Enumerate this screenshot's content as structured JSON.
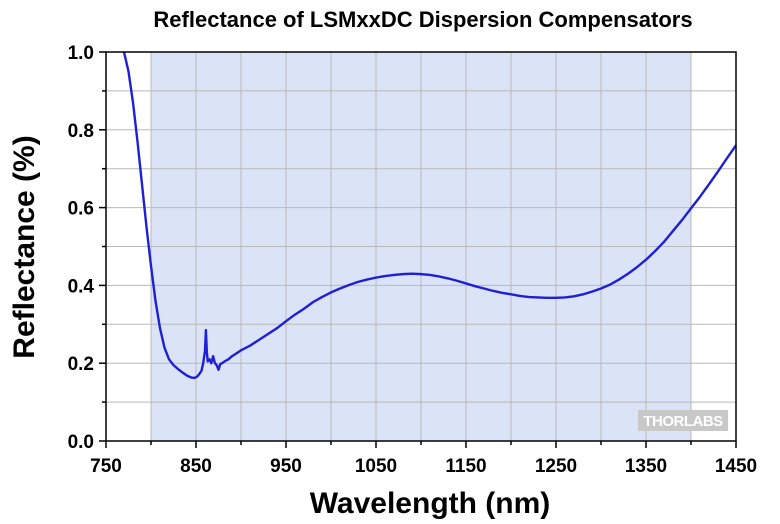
{
  "chart_data": {
    "type": "line",
    "title": "Reflectance of LSMxxDC Dispersion Compensators",
    "xlabel": "Wavelength (nm)",
    "ylabel": "Reflectance (%)",
    "xlim": [
      750,
      1450
    ],
    "ylim": [
      0.0,
      1.0
    ],
    "x_ticks": [
      750,
      850,
      950,
      1050,
      1150,
      1250,
      1350,
      1450
    ],
    "x_tick_labels": [
      "750",
      "850",
      "950",
      "1050",
      "1150",
      "1250",
      "1350",
      "1450"
    ],
    "y_ticks": [
      0.0,
      0.2,
      0.4,
      0.6,
      0.8,
      1.0
    ],
    "y_tick_labels": [
      "0.0",
      "0.2",
      "0.4",
      "0.6",
      "0.8",
      "1.0"
    ],
    "grid": true,
    "shaded_region": {
      "x_start": 800,
      "x_end": 1400,
      "color": "#dbe3f7"
    },
    "series": [
      {
        "color": "#1f1fd6",
        "x": [
          770,
          775,
          780,
          785,
          790,
          795,
          800,
          805,
          810,
          815,
          820,
          825,
          830,
          835,
          840,
          845,
          848,
          851,
          853,
          856,
          858,
          860,
          861,
          862,
          863,
          865,
          867,
          869,
          871,
          873,
          875,
          877,
          879,
          882,
          886,
          890,
          900,
          910,
          920,
          930,
          940,
          950,
          960,
          970,
          980,
          990,
          1000,
          1010,
          1020,
          1030,
          1040,
          1050,
          1060,
          1070,
          1080,
          1090,
          1100,
          1110,
          1120,
          1130,
          1140,
          1150,
          1160,
          1170,
          1180,
          1190,
          1200,
          1210,
          1220,
          1230,
          1240,
          1250,
          1260,
          1270,
          1280,
          1290,
          1300,
          1310,
          1320,
          1330,
          1340,
          1350,
          1360,
          1370,
          1380,
          1390,
          1400,
          1410,
          1420,
          1430,
          1440,
          1450
        ],
        "y": [
          1.0,
          0.95,
          0.87,
          0.77,
          0.66,
          0.55,
          0.45,
          0.36,
          0.29,
          0.24,
          0.21,
          0.195,
          0.185,
          0.176,
          0.168,
          0.163,
          0.162,
          0.165,
          0.17,
          0.18,
          0.2,
          0.232,
          0.285,
          0.23,
          0.205,
          0.21,
          0.2,
          0.218,
          0.2,
          0.195,
          0.183,
          0.198,
          0.2,
          0.205,
          0.21,
          0.218,
          0.233,
          0.245,
          0.26,
          0.275,
          0.29,
          0.308,
          0.325,
          0.34,
          0.357,
          0.37,
          0.382,
          0.392,
          0.401,
          0.409,
          0.415,
          0.42,
          0.424,
          0.427,
          0.429,
          0.43,
          0.429,
          0.427,
          0.423,
          0.418,
          0.412,
          0.405,
          0.398,
          0.392,
          0.386,
          0.381,
          0.377,
          0.373,
          0.37,
          0.369,
          0.368,
          0.368,
          0.369,
          0.372,
          0.377,
          0.384,
          0.392,
          0.402,
          0.415,
          0.43,
          0.447,
          0.466,
          0.488,
          0.512,
          0.54,
          0.568,
          0.598,
          0.628,
          0.66,
          0.693,
          0.727,
          0.76
        ]
      }
    ]
  },
  "watermark": {
    "text": "THORLABS"
  }
}
